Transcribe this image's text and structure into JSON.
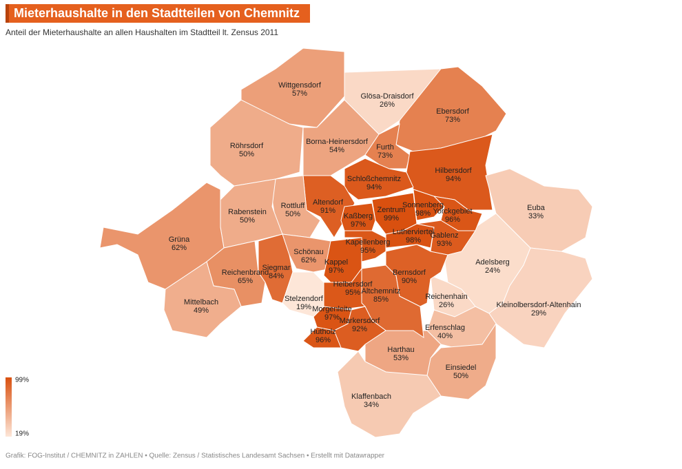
{
  "header": {
    "title": "Mieterhaushalte in den Stadtteilen von Chemnitz",
    "subtitle": "Anteil der Mieterhaushalte an allen Haushalten im Stadtteil lt. Zensus 2011"
  },
  "map": {
    "legend": {
      "min": 19,
      "min_label": "19%",
      "max": 99,
      "max_label": "99%",
      "colors": [
        "#fde6d8",
        "#d9500f"
      ]
    },
    "districts": [
      {
        "name": "Wittgensdorf",
        "value": 57,
        "label": "57%"
      },
      {
        "name": "Glösa-Draisdorf",
        "value": 26,
        "label": "26%"
      },
      {
        "name": "Ebersdorf",
        "value": 73,
        "label": "73%"
      },
      {
        "name": "Röhrsdorf",
        "value": 50,
        "label": "50%"
      },
      {
        "name": "Borna-Heinersdorf",
        "value": 54,
        "label": "54%"
      },
      {
        "name": "Furth",
        "value": 73,
        "label": "73%"
      },
      {
        "name": "Hilbersdorf",
        "value": 94,
        "label": "94%"
      },
      {
        "name": "Schloßchemnitz",
        "value": 94,
        "label": "94%"
      },
      {
        "name": "Altendorf",
        "value": 91,
        "label": "91%"
      },
      {
        "name": "Rottluff",
        "value": 50,
        "label": "50%"
      },
      {
        "name": "Rabenstein",
        "value": 50,
        "label": "50%"
      },
      {
        "name": "Euba",
        "value": 33,
        "label": "33%"
      },
      {
        "name": "Grüna",
        "value": 62,
        "label": "62%"
      },
      {
        "name": "Reichenbrand",
        "value": 65,
        "label": "65%"
      },
      {
        "name": "Siegmar",
        "value": 84,
        "label": "84%"
      },
      {
        "name": "Mittelbach",
        "value": 49,
        "label": "49%"
      },
      {
        "name": "Schönau",
        "value": 62,
        "label": "62%"
      },
      {
        "name": "Stelzendorf",
        "value": 19,
        "label": "19%"
      },
      {
        "name": "Adelsberg",
        "value": 24,
        "label": "24%"
      },
      {
        "name": "Kleinolbersdorf-Altenhain",
        "value": 29,
        "label": "29%"
      },
      {
        "name": "Reichenhain",
        "value": 26,
        "label": "26%"
      },
      {
        "name": "Erfenschlag",
        "value": 40,
        "label": "40%"
      },
      {
        "name": "Einsiedel",
        "value": 50,
        "label": "50%"
      },
      {
        "name": "Harthau",
        "value": 53,
        "label": "53%"
      },
      {
        "name": "Klaffenbach",
        "value": 34,
        "label": "34%"
      },
      {
        "name": "Altchemnitz",
        "value": 85,
        "label": "85%"
      },
      {
        "name": "Bernsdorf",
        "value": 90,
        "label": "90%"
      },
      {
        "name": "Kappel",
        "value": 97,
        "label": "97%"
      },
      {
        "name": "Helbersdorf",
        "value": 95,
        "label": "95%"
      },
      {
        "name": "Morgenleite",
        "value": 97,
        "label": "97%"
      },
      {
        "name": "Markersdorf",
        "value": 92,
        "label": "92%"
      },
      {
        "name": "Hutholz",
        "value": 96,
        "label": "96%"
      },
      {
        "name": "Kapellenberg",
        "value": 95,
        "label": "95%"
      },
      {
        "name": "Kaßberg",
        "value": 97,
        "label": "97%"
      },
      {
        "name": "Zentrum",
        "value": 99,
        "label": "99%"
      },
      {
        "name": "Sonnenberg",
        "value": 98,
        "label": "98%"
      },
      {
        "name": "Yorckgebiet",
        "value": 96,
        "label": "96%"
      },
      {
        "name": "Lutherviertel",
        "value": 98,
        "label": "98%"
      },
      {
        "name": "Gablenz",
        "value": 93,
        "label": "93%"
      }
    ]
  },
  "footer": "Grafik: FOG-Institut / CHEMNITZ in ZAHLEN • Quelle: Zensus / Statistisches Landesamt Sachsen • Erstellt mit Datawrapper"
}
